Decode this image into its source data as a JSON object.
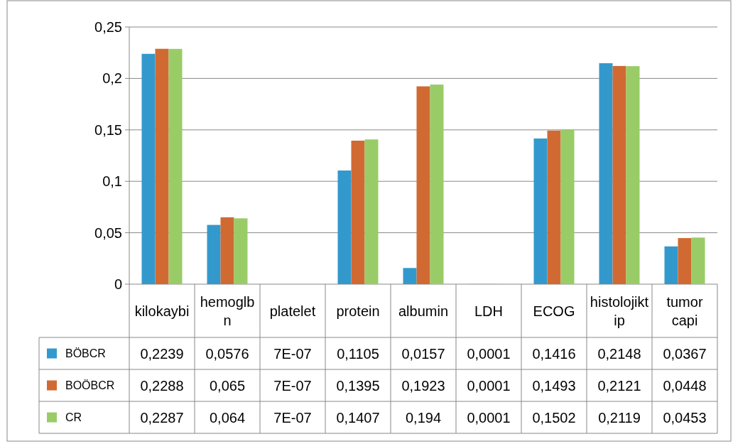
{
  "chart_data": {
    "type": "bar",
    "categories": [
      "kilokaybi",
      "hemoglbn",
      "platelet",
      "protein",
      "albumin",
      "LDH",
      "ECOG",
      "histolojiktip",
      "tumor capi"
    ],
    "series": [
      {
        "name": "BÖBCR",
        "color": "#3399cc",
        "values": [
          0.2239,
          0.0576,
          7e-07,
          0.1105,
          0.0157,
          0.0001,
          0.1416,
          0.2148,
          0.0367
        ],
        "value_labels": [
          "0,2239",
          "0,0576",
          "7E-07",
          "0,1105",
          "0,0157",
          "0,0001",
          "0,1416",
          "0,2148",
          "0,0367"
        ]
      },
      {
        "name": "BOÖBCR",
        "color": "#d06a32",
        "values": [
          0.2288,
          0.065,
          7e-07,
          0.1395,
          0.1923,
          0.0001,
          0.1493,
          0.2121,
          0.0448
        ],
        "value_labels": [
          "0,2288",
          "0,065",
          "7E-07",
          "0,1395",
          "0,1923",
          "0,0001",
          "0,1493",
          "0,2121",
          "0,0448"
        ]
      },
      {
        "name": "CR",
        "color": "#99cc66",
        "values": [
          0.2287,
          0.064,
          7e-07,
          0.1407,
          0.194,
          0.0001,
          0.1502,
          0.2119,
          0.0453
        ],
        "value_labels": [
          "0,2287",
          "0,064",
          "7E-07",
          "0,1407",
          "0,194",
          "0,0001",
          "0,1502",
          "0,2119",
          "0,0453"
        ]
      }
    ],
    "ylim": [
      0,
      0.25
    ],
    "yticks": [
      0,
      {
        "value": 0.05,
        "label": "0,05"
      },
      {
        "value": 0.1,
        "label": "0,1"
      },
      {
        "value": 0.15,
        "label": "0,15"
      },
      {
        "value": 0.2,
        "label": "0,2"
      },
      {
        "value": 0.25,
        "label": "0,25"
      }
    ],
    "grid": "y",
    "legend": "left"
  }
}
